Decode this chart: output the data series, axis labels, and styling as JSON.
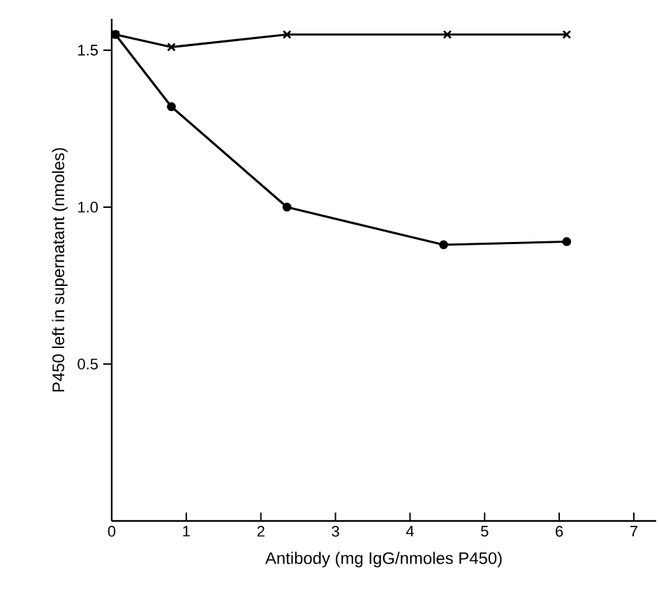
{
  "chart_data": {
    "type": "line",
    "xlabel": "Antibody (mg IgG/nmoles P450)",
    "ylabel": "P450 left in supernatant (nmoles)",
    "xlim": [
      0,
      7.3
    ],
    "ylim": [
      0,
      1.6
    ],
    "xticks": [
      0,
      1,
      2,
      3,
      4,
      5,
      6,
      7
    ],
    "yticks": [
      {
        "value": 0.5,
        "label": "0.5"
      },
      {
        "value": 1.0,
        "label": "1.0"
      },
      {
        "value": 1.5,
        "label": "1.5"
      }
    ],
    "line_style": "solid",
    "series": [
      {
        "color": "#000000",
        "marker": "cross",
        "x": [
          0.05,
          0.8,
          2.35,
          4.5,
          6.1
        ],
        "values": [
          1.55,
          1.51,
          1.55,
          1.55,
          1.55
        ]
      },
      {
        "color": "#000000",
        "marker": "circle",
        "x": [
          0.05,
          0.8,
          2.35,
          4.45,
          6.1
        ],
        "values": [
          1.55,
          1.32,
          1.0,
          0.88,
          0.89
        ]
      }
    ]
  }
}
